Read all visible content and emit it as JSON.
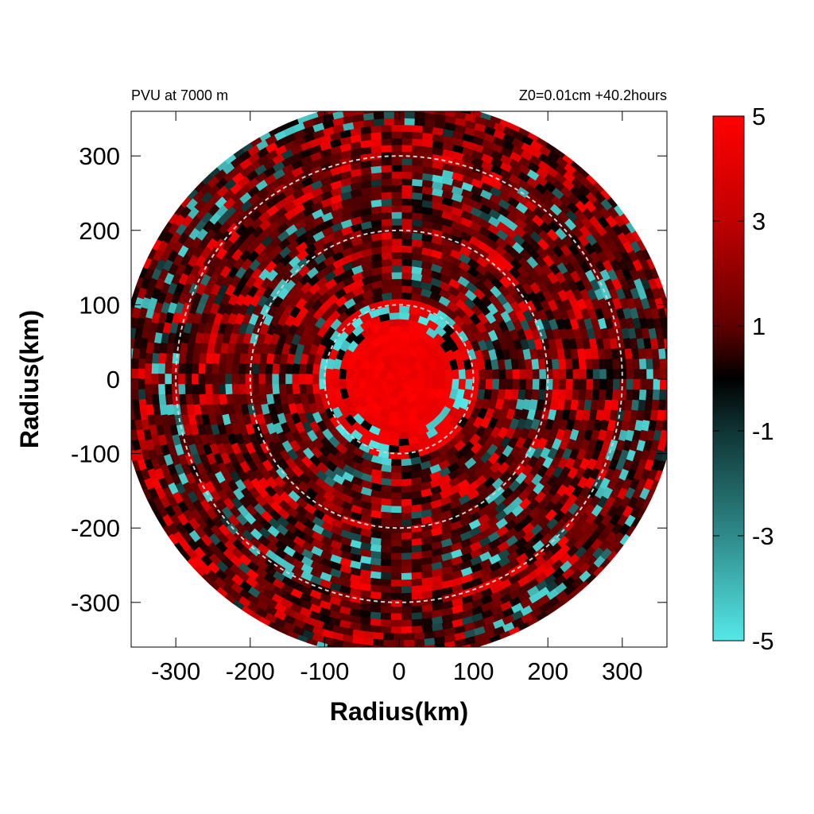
{
  "chart_data": {
    "type": "heatmap",
    "title_left": "PVU at  7000 m",
    "title_right": "Z0=0.01cm  +40.2hours",
    "xlabel": "Radius(km)",
    "ylabel": "Radius(km)",
    "xlim": [
      -360,
      360
    ],
    "ylim": [
      -360,
      360
    ],
    "x_ticks": [
      -300,
      -200,
      -100,
      0,
      100,
      200,
      300
    ],
    "y_ticks": [
      -300,
      -200,
      -100,
      0,
      100,
      200,
      300
    ],
    "x_tick_labels": [
      "-300",
      "-200",
      "-100",
      "0",
      "100",
      "200",
      "300"
    ],
    "y_tick_labels": [
      "300",
      "200",
      "100",
      "0",
      "-100",
      "-200",
      "-300"
    ],
    "domain_radius_km": 375,
    "reference_circles_km": [
      100,
      200,
      300
    ],
    "colorbar": {
      "range": [
        -5,
        5
      ],
      "ticks": [
        5,
        3,
        1,
        -1,
        -3,
        -5
      ],
      "tick_labels": [
        "5",
        "3",
        "1",
        "-1",
        "-3",
        "-5"
      ],
      "colors": {
        "max": "#ff0000",
        "mid": "#000000",
        "min": "#55e8e8"
      }
    },
    "field_description": {
      "core_radius_km": 80,
      "core_value": 5,
      "background_value": 1.5
    }
  }
}
